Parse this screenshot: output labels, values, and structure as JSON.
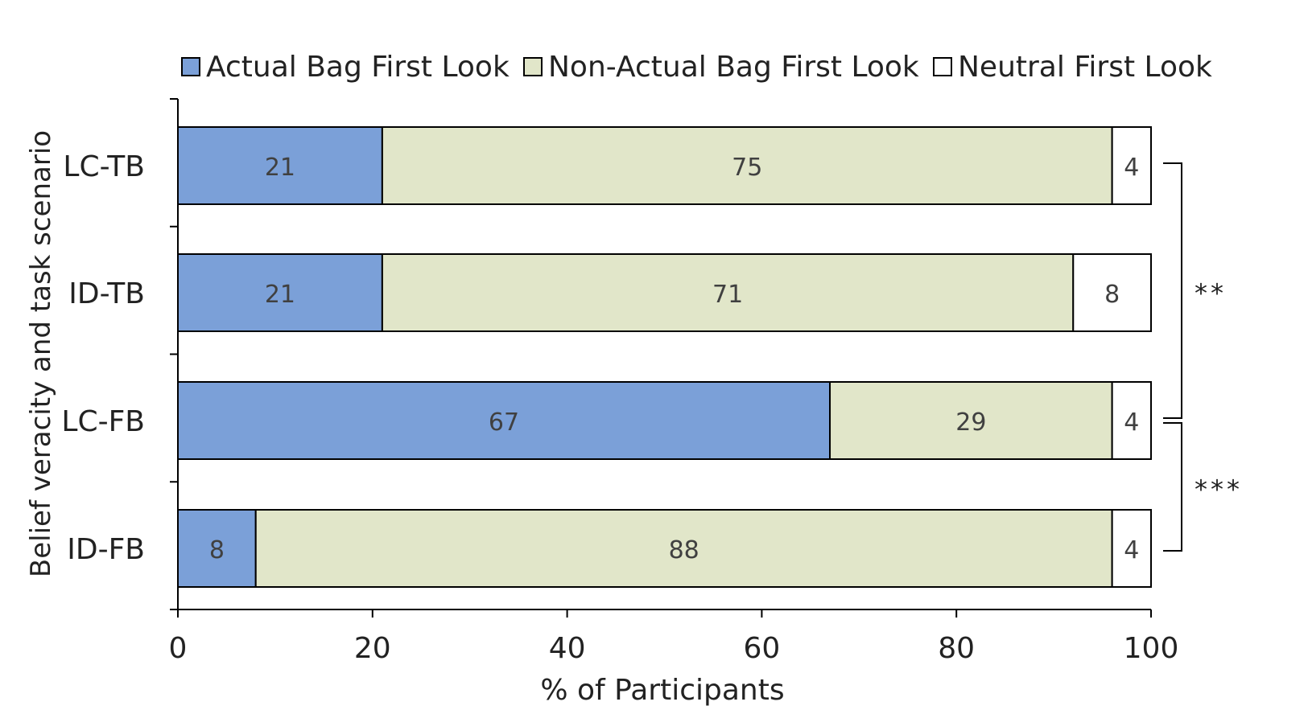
{
  "chart_data": {
    "type": "bar",
    "orientation": "horizontal",
    "stacked": true,
    "title": "",
    "xlabel": "% of Participants",
    "ylabel": "Belief veracity and task scenario",
    "xlim": [
      0,
      100
    ],
    "xticks": [
      0,
      20,
      40,
      60,
      80,
      100
    ],
    "grid": false,
    "legend_position": "top",
    "categories": [
      "LC-TB",
      "ID-TB",
      "LC-FB",
      "ID-FB"
    ],
    "series": [
      {
        "name": "Actual Bag First Look",
        "color": "#7ba0d8",
        "values": [
          21,
          21,
          67,
          8
        ]
      },
      {
        "name": "Non-Actual Bag First Look",
        "color": "#e1e6c9",
        "values": [
          75,
          71,
          29,
          88
        ]
      },
      {
        "name": "Neutral First Look",
        "color": "#ffffff",
        "values": [
          4,
          8,
          4,
          4
        ]
      }
    ],
    "significance": [
      {
        "from": "LC-TB",
        "to": "LC-FB",
        "label": "**"
      },
      {
        "from": "LC-FB",
        "to": "ID-FB",
        "label": "***"
      }
    ]
  }
}
